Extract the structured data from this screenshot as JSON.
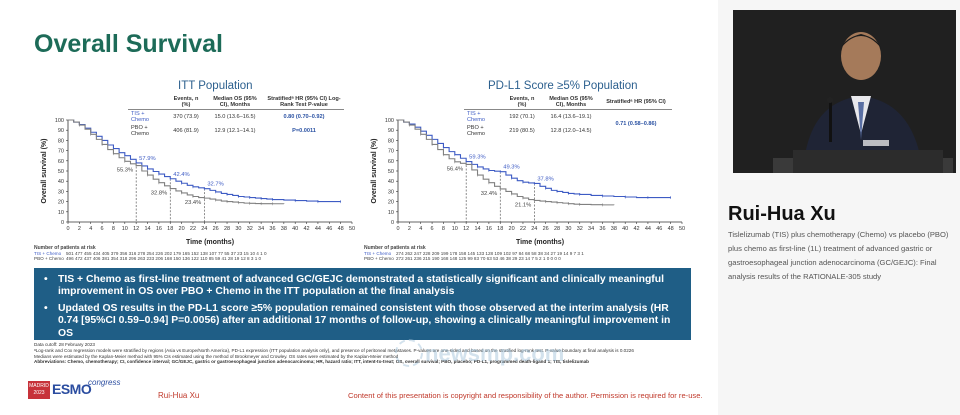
{
  "slide": {
    "title": "Overall Survival",
    "footnotes": {
      "cutoff": "Data cutoff: 28 February 2023",
      "a": "ᵃLog-rank and Cox regression models were stratified by regions (Asia vs Europe/North America), PD-L1 expression (ITT population analysis only), and presence of peritoneal metastases. P-values are one-sided and based on the stratified log-rank test. P-value boundary at final analysis is 0.0226",
      "b": "Medians were estimated by the Kaplan-Meier method with 95% CIs estimated using the method of Brookmeyer and Crowley. OS rates were estimated by the Kaplan-Meier method",
      "abbrev": "Abbreviations: Chemo, chemotherapy; CI, confidence interval; GC/GEJC, gastric or gastroesophageal junction adenocarcinoma; HR, hazard ratio; ITT, intent-to-treat; OS, overall survival; PBO, placebo; PD-L1, programmed death-ligand 1; TIS, tislelizumab"
    },
    "key_points": [
      "TIS + Chemo as first-line treatment of advanced GC/GEJC demonstrated a statistically significant and clinically meaningful improvement in OS over PBO + Chemo in the ITT population at the final analysis",
      "Updated OS results in the PD-L1 score ≥5% population remained consistent with those observed at the interim analysis (HR 0.74 [95%CI 0.59–0.94] P=0.0056) after an additional 17 months of follow-up, showing a clinically meaningful improvement in OS"
    ],
    "footer": {
      "madrid": "MADRID 2023",
      "esmo": "ESMO",
      "congress": "congress",
      "presenter": "Rui-Hua Xu",
      "copyright": "Content of this presentation is copyright and responsibility of the author. Permission is required for re-use."
    },
    "watermark": "newsmp.com"
  },
  "speaker": {
    "name": "Rui-Hua Xu",
    "description": "Tislelizumab (TIS) plus chemotherapy (Chemo) vs placebo (PBO) plus chemo as first-line (1L) treatment of advanced gastric or gastroesophageal junction adenocarcinoma (GC/GEJC): Final analysis results of the RATIONALE-305 study"
  },
  "colors": {
    "title_green": "#1d6b58",
    "tis_blue": "#3d5bc4",
    "pbo_gray": "#808080",
    "box_blue": "#1f5e86",
    "footer_red": "#c0392b"
  },
  "stat_headers": {
    "events": "Events, n (%)",
    "median": "Median OS (95% CI), Months",
    "hr_itt": "Stratifiedᵃ HR (95% CI) Log-Rank Test P-value",
    "hr_pdl1": "Stratifiedᵃ HR (95% CI)"
  },
  "chart_data": [
    {
      "type": "line",
      "title": "ITT Population",
      "xlabel": "Time (months)",
      "ylabel": "Overall survival (%)",
      "xlim": [
        0,
        50
      ],
      "ylim": [
        0,
        100
      ],
      "xticks": [
        0,
        2,
        4,
        6,
        8,
        10,
        12,
        14,
        16,
        18,
        20,
        22,
        24,
        26,
        28,
        30,
        32,
        34,
        36,
        38,
        40,
        42,
        44,
        46,
        48,
        50
      ],
      "yticks": [
        0,
        10,
        20,
        30,
        40,
        50,
        60,
        70,
        80,
        90,
        100
      ],
      "series": [
        {
          "name": "TIS + Chemo",
          "color": "#3d5bc4",
          "x": [
            0,
            1,
            2,
            3,
            4,
            5,
            6,
            7,
            8,
            9,
            10,
            11,
            12,
            13,
            14,
            15,
            16,
            17,
            18,
            19,
            20,
            21,
            22,
            23,
            24,
            25,
            26,
            27,
            28,
            29,
            30,
            31,
            32,
            33,
            34,
            35,
            36,
            38,
            40,
            42,
            44,
            46,
            48
          ],
          "y": [
            100,
            98,
            95.5,
            92,
            88,
            84,
            80,
            75.5,
            72,
            68,
            65,
            61.5,
            57.9,
            55,
            52,
            49.5,
            47,
            44.5,
            42.4,
            40,
            38,
            36,
            34.5,
            33.5,
            32.7,
            31,
            29.5,
            28,
            27,
            26,
            25,
            24.5,
            24,
            23.5,
            23,
            22.5,
            22,
            21.5,
            21,
            20.5,
            20,
            20,
            20
          ]
        },
        {
          "name": "PBO + Chemo",
          "color": "#808080",
          "x": [
            0,
            1,
            2,
            3,
            4,
            5,
            6,
            7,
            8,
            9,
            10,
            11,
            12,
            13,
            14,
            15,
            16,
            17,
            18,
            19,
            20,
            21,
            22,
            23,
            24,
            25,
            26,
            27,
            28,
            29,
            30,
            31,
            32,
            33,
            34,
            35,
            36,
            38
          ],
          "y": [
            100,
            98,
            95,
            91,
            86,
            81,
            76,
            71,
            67,
            63,
            59.5,
            57,
            55.3,
            50,
            46,
            42,
            38.5,
            35.5,
            32.8,
            30.5,
            28.5,
            26.5,
            25,
            24,
            23.4,
            22.5,
            21.5,
            20.5,
            20,
            19.5,
            19,
            18.5,
            18.3,
            18.1,
            18,
            18,
            17.9,
            17.8
          ]
        }
      ],
      "annotations": [
        {
          "text": "57.9%",
          "x": 12,
          "y": 57.9,
          "series": "TIS + Chemo"
        },
        {
          "text": "55.3%",
          "x": 12,
          "y": 55.3,
          "series": "PBO + Chemo"
        },
        {
          "text": "42.4%",
          "x": 18,
          "y": 42.4,
          "series": "TIS + Chemo"
        },
        {
          "text": "32.8%",
          "x": 18,
          "y": 32.8,
          "series": "PBO + Chemo"
        },
        {
          "text": "32.7%",
          "x": 24,
          "y": 32.7,
          "series": "TIS + Chemo"
        },
        {
          "text": "23.4%",
          "x": 24,
          "y": 23.4,
          "series": "PBO + Chemo"
        }
      ],
      "stats": [
        {
          "arm": "TIS + Chemo",
          "events": "370 (73.9)",
          "median": "15.0 (13.6–16.5)"
        },
        {
          "arm": "PBO + Chemo",
          "events": "406 (81.9)",
          "median": "12.9 (12.1–14.1)"
        }
      ],
      "hr": "0.80 (0.70–0.92)",
      "pvalue": "P=0.0011",
      "risk_header": "Number of patients at risk",
      "risk_rows": [
        {
          "arm": "TIS + Chemo",
          "values": "501 477 455 434 405 379 356 316 278 254 226 202 179 165 152 138 107 77 55 37 23 15 10 4 1 0"
        },
        {
          "arm": "PBO + Chemo",
          "values": "496 472 437 406 381 354 318 296 263 233 206 168 150 136 122 110 85 59 41 28 19 12 8 3 1 0"
        }
      ]
    },
    {
      "type": "line",
      "title": "PD-L1 Score ≥5% Population",
      "xlabel": "Time (months)",
      "ylabel": "Overall survival (%)",
      "xlim": [
        0,
        50
      ],
      "ylim": [
        0,
        100
      ],
      "xticks": [
        0,
        2,
        4,
        6,
        8,
        10,
        12,
        14,
        16,
        18,
        20,
        22,
        24,
        26,
        28,
        30,
        32,
        34,
        36,
        38,
        40,
        42,
        44,
        46,
        48,
        50
      ],
      "yticks": [
        0,
        10,
        20,
        30,
        40,
        50,
        60,
        70,
        80,
        90,
        100
      ],
      "series": [
        {
          "name": "TIS + Chemo",
          "color": "#3d5bc4",
          "x": [
            0,
            1,
            2,
            3,
            4,
            5,
            6,
            7,
            8,
            9,
            10,
            11,
            12,
            13,
            14,
            15,
            16,
            17,
            18,
            19,
            20,
            21,
            22,
            23,
            24,
            25,
            26,
            27,
            28,
            29,
            30,
            31,
            32,
            34,
            36,
            38,
            40,
            42,
            44,
            46,
            48
          ],
          "y": [
            100,
            98,
            96,
            93,
            89,
            85,
            81,
            77,
            73,
            69,
            66,
            62.5,
            59.3,
            56.5,
            54,
            52,
            50.5,
            49.8,
            49.3,
            46,
            43,
            40.5,
            39,
            38.3,
            37.8,
            35,
            33,
            31,
            30,
            29,
            28,
            27.5,
            27,
            26,
            25.5,
            25,
            24.5,
            24,
            24,
            24,
            24
          ]
        },
        {
          "name": "PBO + Chemo",
          "color": "#808080",
          "x": [
            0,
            1,
            2,
            3,
            4,
            5,
            6,
            7,
            8,
            9,
            10,
            11,
            12,
            13,
            14,
            15,
            16,
            17,
            18,
            19,
            20,
            21,
            22,
            23,
            24,
            25,
            26,
            27,
            28,
            29,
            30,
            31,
            32,
            34,
            36,
            38
          ],
          "y": [
            100,
            98,
            95,
            91,
            86,
            81,
            76,
            71,
            66,
            62,
            59,
            57.5,
            56.4,
            51,
            46,
            42,
            38.5,
            35,
            32.4,
            30,
            27.5,
            25,
            23.5,
            22,
            21.1,
            20.5,
            20,
            19.5,
            19,
            18.5,
            18,
            17.5,
            17.2,
            17,
            16.8,
            16.5
          ]
        }
      ],
      "annotations": [
        {
          "text": "59.3%",
          "x": 12,
          "y": 59.3,
          "series": "TIS + Chemo"
        },
        {
          "text": "56.4%",
          "x": 12,
          "y": 56.4,
          "series": "PBO + Chemo"
        },
        {
          "text": "49.3%",
          "x": 18,
          "y": 49.3,
          "series": "TIS + Chemo"
        },
        {
          "text": "32.4%",
          "x": 18,
          "y": 32.4,
          "series": "PBO + Chemo"
        },
        {
          "text": "37.8%",
          "x": 24,
          "y": 37.8,
          "series": "TIS + Chemo"
        },
        {
          "text": "21.1%",
          "x": 24,
          "y": 21.1,
          "series": "PBO + Chemo"
        }
      ],
      "stats": [
        {
          "arm": "TIS + Chemo",
          "events": "192 (70.1)",
          "median": "16.4 (13.6–19.1)"
        },
        {
          "arm": "PBO + Chemo",
          "events": "219 (80.5)",
          "median": "12.8 (12.0–14.5)"
        }
      ],
      "hr": "0.71 (0.58–0.86)",
      "pvalue": "",
      "risk_header": "Number of patients at risk",
      "risk_rows": [
        {
          "arm": "TIS + Chemo",
          "values": "274 262 247 228 209 199 178 158 145 133 128 109 102 97 84 68 58 38 34 27 19 14 9 7 3 1"
        },
        {
          "arm": "PBO + Chemo",
          "values": "272 261 236 215 190 168 148 125 99 83 70 63 53 46 38 29 23 14 7 5 2 1 0 0 0 0"
        }
      ]
    }
  ]
}
